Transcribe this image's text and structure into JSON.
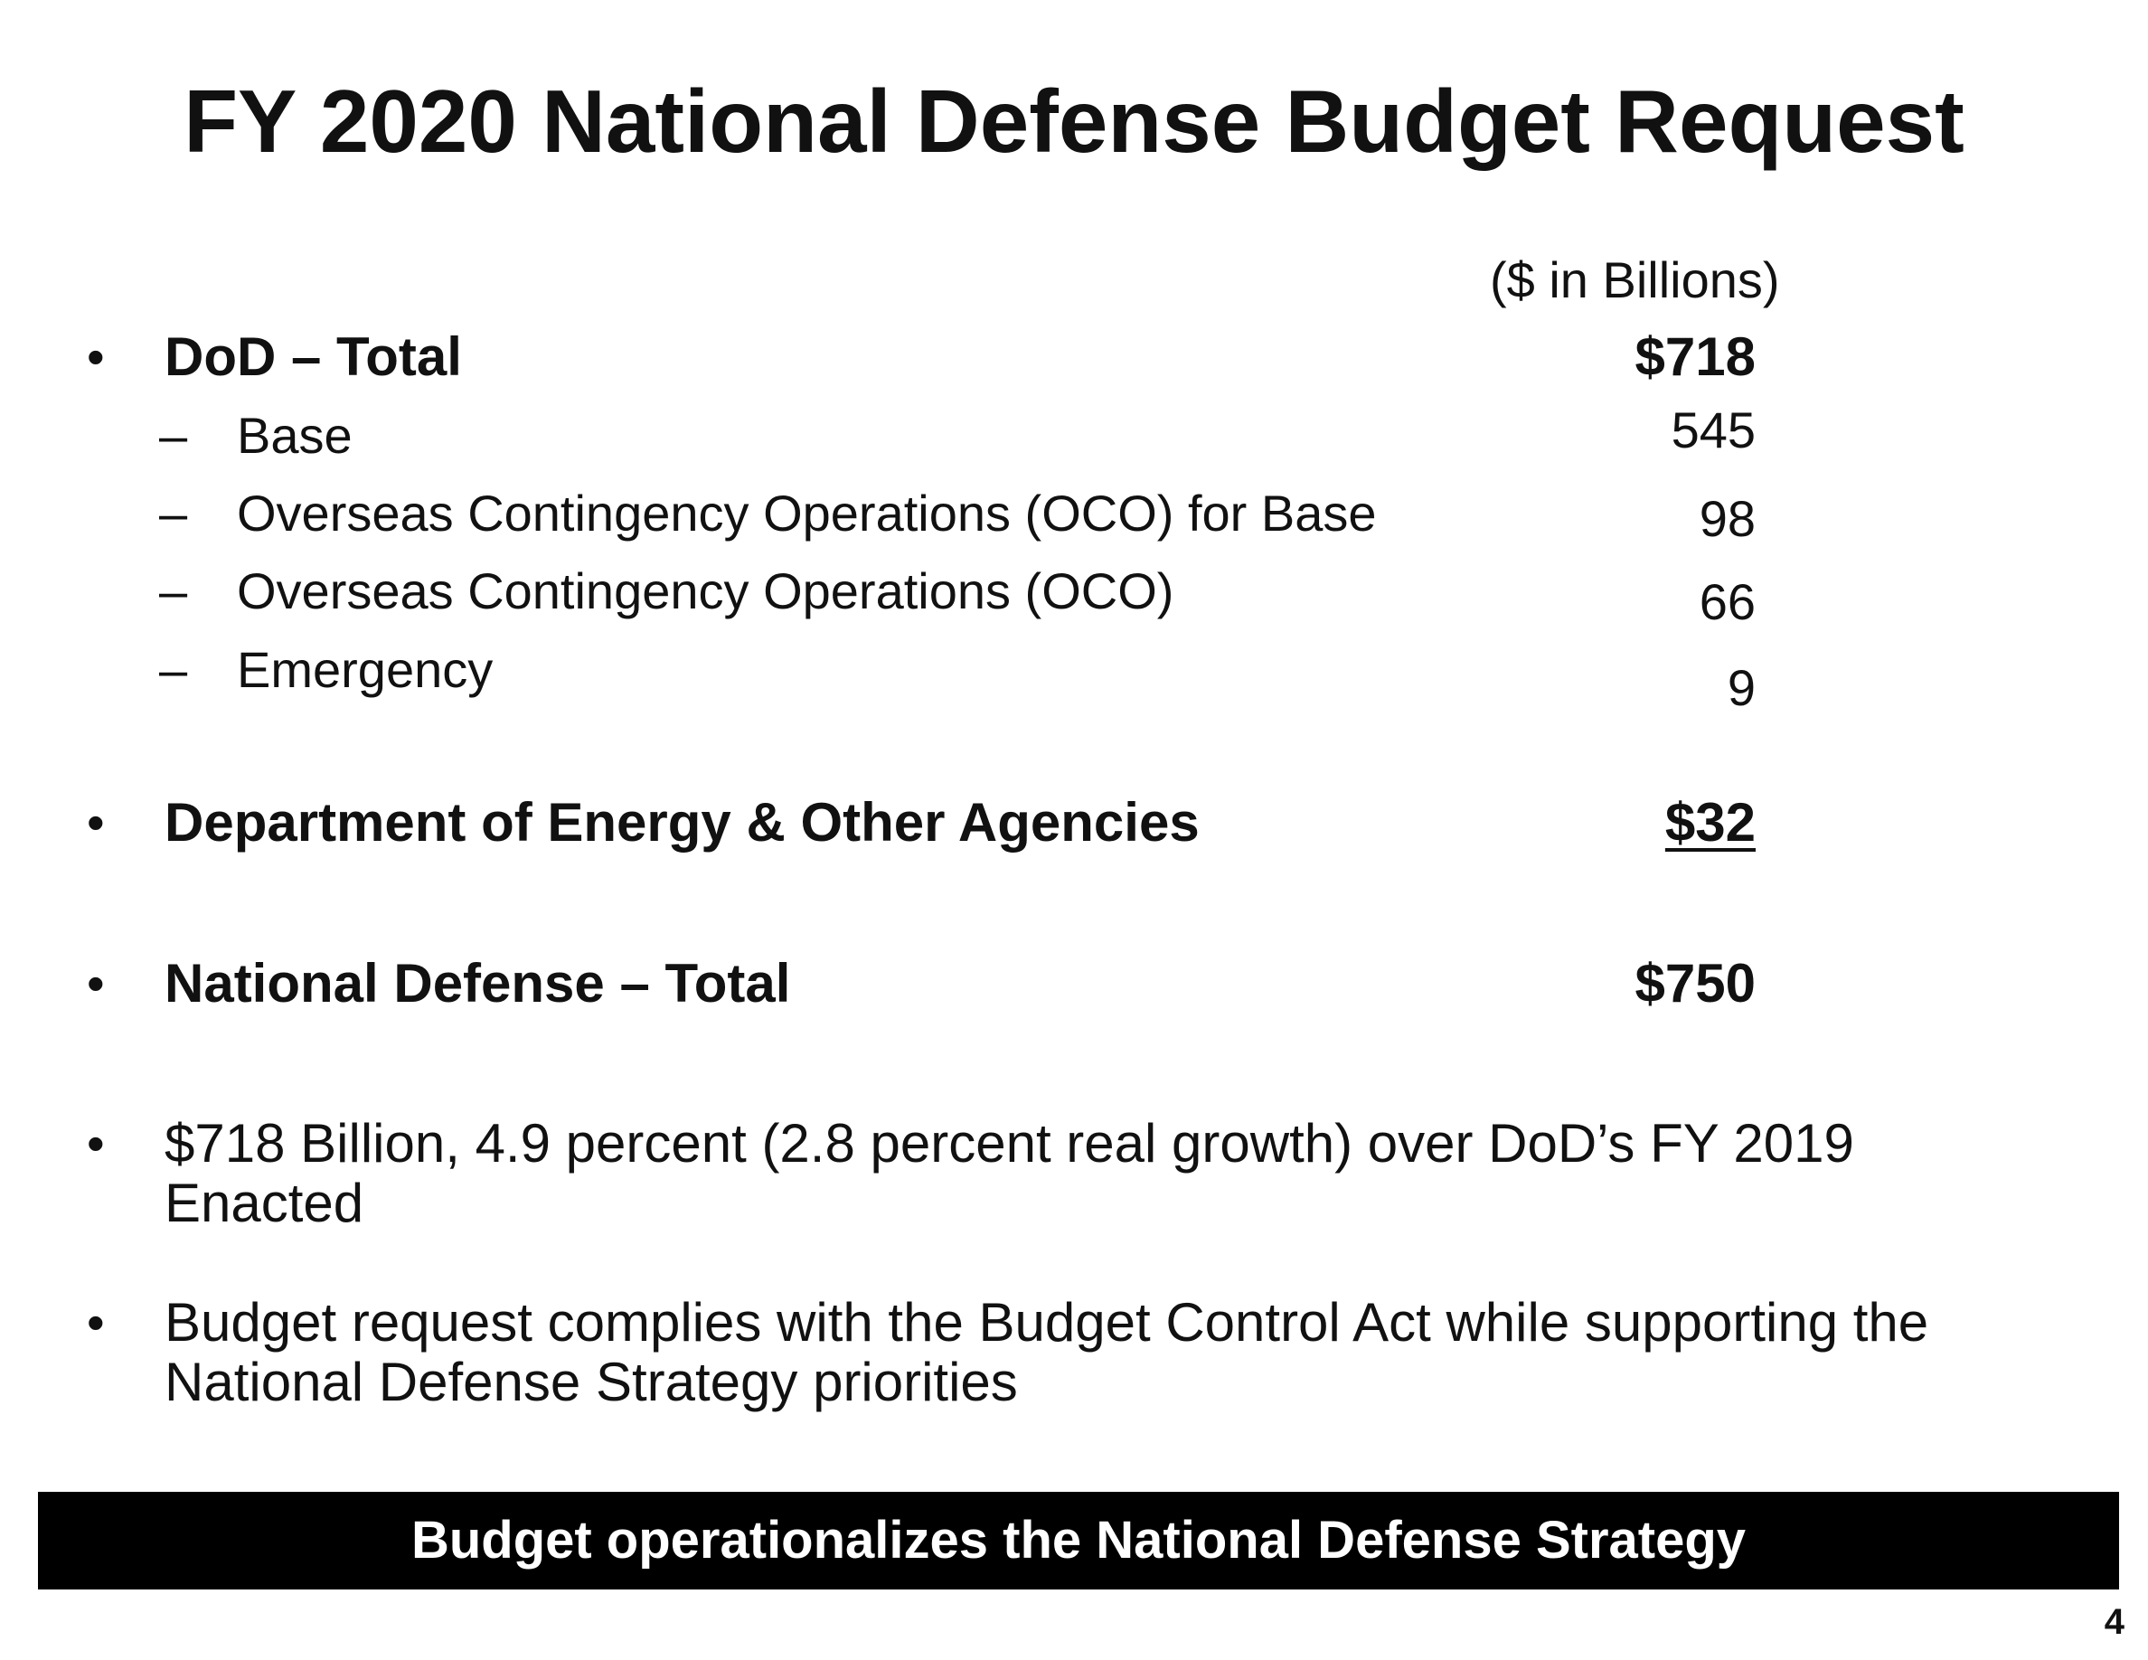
{
  "slide": {
    "title": "FY 2020 National Defense Budget Request",
    "units": "($ in Billions)"
  },
  "budget": {
    "dod_total": {
      "bullet": "•",
      "label": "DoD – Total",
      "value": "$718"
    },
    "dod_items": [
      {
        "dash": "–",
        "label": "Base",
        "value": "545"
      },
      {
        "dash": "–",
        "label": "Overseas Contingency Operations (OCO) for Base",
        "value": "98"
      },
      {
        "dash": "–",
        "label": "Overseas Contingency Operations (OCO)",
        "value": "66"
      },
      {
        "dash": "–",
        "label": "Emergency",
        "value": "9"
      }
    ],
    "doe": {
      "bullet": "•",
      "label": "Department of Energy & Other Agencies",
      "value": "$32"
    },
    "national_total": {
      "bullet": "•",
      "label": "National Defense – Total",
      "value": "$750"
    }
  },
  "notes": [
    {
      "bullet": "•",
      "text": "$718 Billion, 4.9 percent (2.8 percent real growth) over DoD’s FY 2019 Enacted"
    },
    {
      "bullet": "•",
      "text": "Budget request complies with the Budget Control Act while supporting the National Defense Strategy priorities"
    }
  ],
  "banner": "Budget operationalizes the National Defense Strategy",
  "page_number": "4"
}
